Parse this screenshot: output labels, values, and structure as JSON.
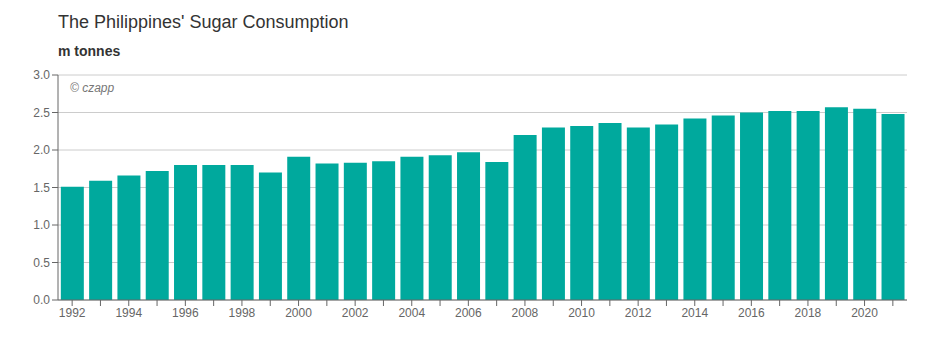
{
  "chart_data": {
    "type": "bar",
    "title": "The Philippines' Sugar Consumption",
    "ylabel": "m tonnes",
    "annotations": [
      "© czapp"
    ],
    "categories": [
      "1992",
      null,
      "1994",
      null,
      "1996",
      null,
      "1998",
      null,
      "2000",
      null,
      "2002",
      null,
      "2004",
      null,
      "2006",
      null,
      "2008",
      null,
      "2010",
      null,
      "2012",
      null,
      "2014",
      null,
      "2016",
      null,
      "2018",
      null,
      "2020",
      null
    ],
    "values": [
      1.51,
      1.59,
      1.66,
      1.72,
      1.8,
      1.8,
      1.8,
      1.7,
      1.91,
      1.82,
      1.83,
      1.85,
      1.91,
      1.93,
      1.97,
      1.84,
      2.2,
      2.3,
      2.32,
      2.36,
      2.3,
      2.34,
      2.42,
      2.46,
      2.5,
      2.52,
      2.52,
      2.57,
      2.55,
      2.48
    ],
    "color": "#00A99D",
    "ylim": [
      0,
      3.0
    ],
    "yticks": [
      {
        "value": 0,
        "label": "0.0"
      },
      0.5,
      {
        "value": 1,
        "label": "1.0"
      },
      1.5,
      {
        "value": 2,
        "label": "2.0"
      },
      2.5,
      {
        "value": 3,
        "label": "3.0"
      }
    ],
    "grid": true
  }
}
